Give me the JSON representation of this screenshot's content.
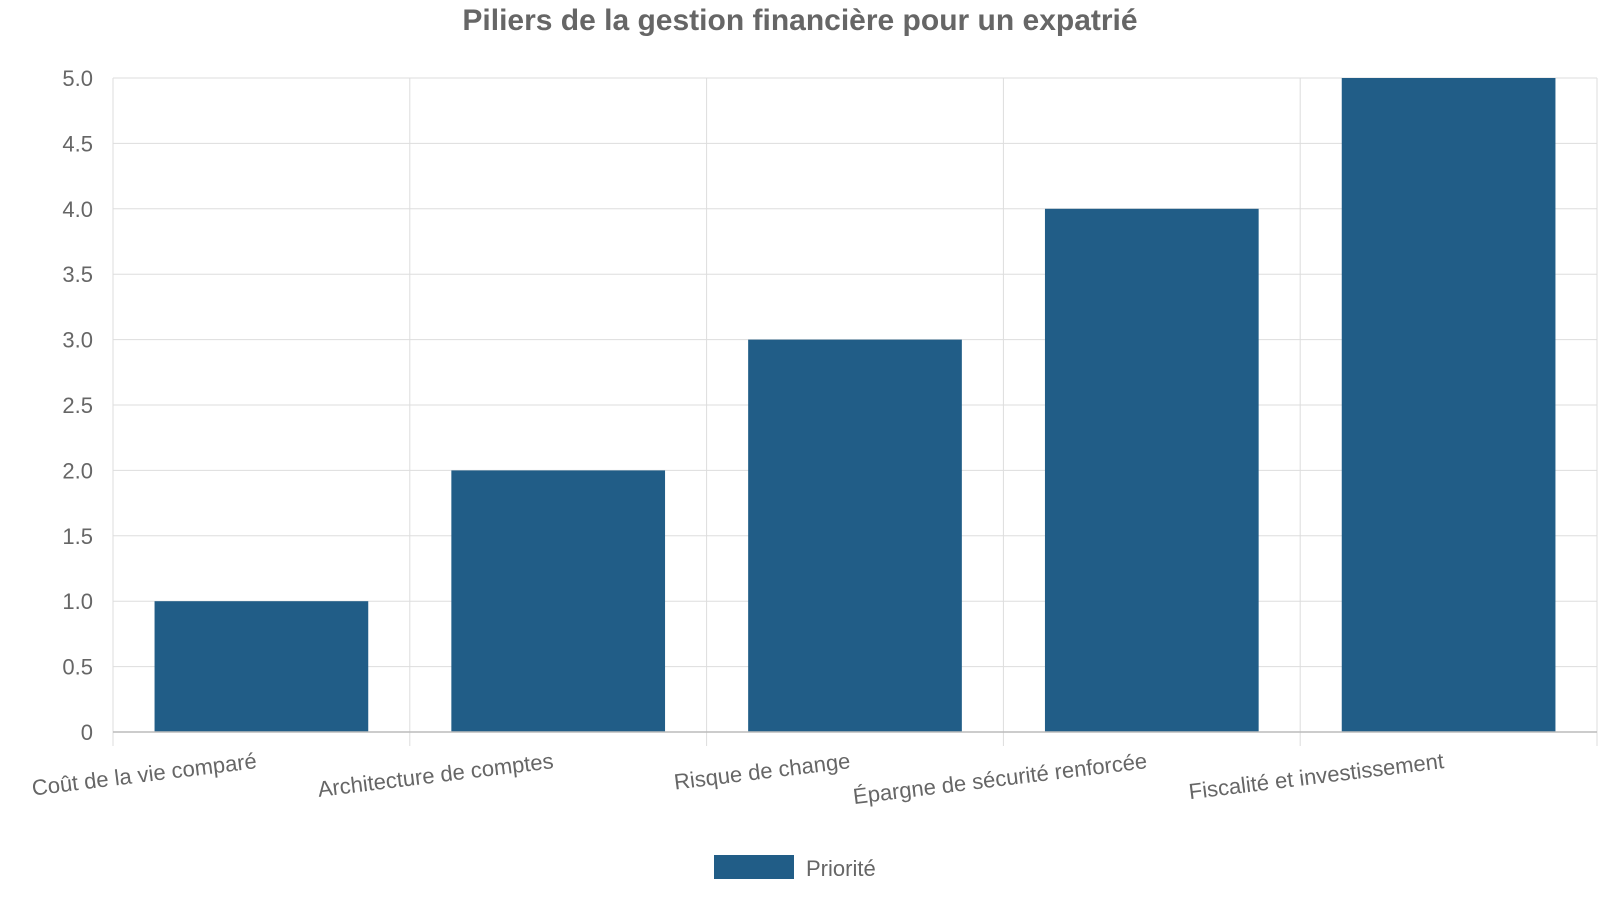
{
  "chart_data": {
    "type": "bar",
    "title": "Piliers de la gestion financière pour un expatrié",
    "xlabel": "",
    "ylabel": "",
    "categories": [
      "Coût de la vie comparé",
      "Architecture de comptes",
      "Risque de change",
      "Épargne de sécurité renforcée",
      "Fiscalité et investissement"
    ],
    "series": [
      {
        "name": "Priorité",
        "values": [
          1,
          2,
          3,
          4,
          5
        ],
        "color": "#215d87"
      }
    ],
    "ylim": [
      0,
      5
    ],
    "yticks": [
      "0",
      "0.5",
      "1.0",
      "1.5",
      "2.0",
      "2.5",
      "3.0",
      "3.5",
      "4.0",
      "4.5",
      "5.0"
    ],
    "grid": true,
    "legend_position": "bottom-center",
    "colors": {
      "grid": "#dddddd",
      "axis": "#bbbbbb",
      "text": "#666666"
    }
  }
}
